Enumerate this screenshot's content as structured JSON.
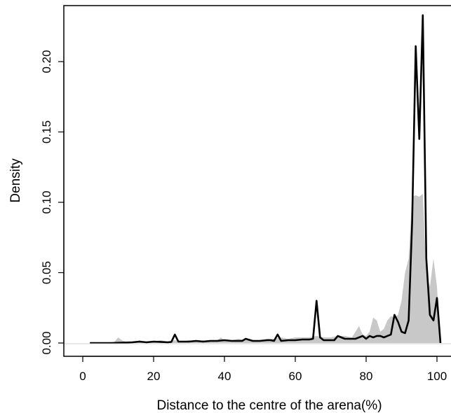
{
  "chart_data": {
    "type": "area",
    "title": "",
    "xlabel": "Distance to the centre of the arena(%)",
    "ylabel": "Density",
    "xlim": [
      0,
      100
    ],
    "ylim": [
      0,
      0.23
    ],
    "x_ticks": [
      0,
      20,
      40,
      60,
      80,
      100
    ],
    "x_tick_labels": [
      "0",
      "20",
      "40",
      "60",
      "80",
      "100"
    ],
    "y_ticks": [
      0.0,
      0.05,
      0.1,
      0.15,
      0.2
    ],
    "y_tick_labels": [
      "0.00",
      "0.05",
      "0.10",
      "0.15",
      "0.20"
    ],
    "grid": false,
    "legend": "none",
    "series": [
      {
        "style": "filled-area",
        "color": "#c8c8c8",
        "x": [
          0,
          8,
          9,
          10,
          11,
          12,
          15,
          16,
          17,
          20,
          22,
          24,
          26,
          28,
          30,
          32,
          34,
          36,
          38,
          39,
          40,
          42,
          44,
          46,
          48,
          50,
          52,
          54,
          56,
          58,
          60,
          62,
          64,
          66,
          68,
          70,
          72,
          74,
          76,
          77,
          78,
          79,
          80,
          81,
          82,
          83,
          84,
          85,
          86,
          87,
          88,
          89,
          90,
          91,
          92,
          93,
          94,
          95,
          96,
          97,
          98,
          99,
          100,
          101
        ],
        "y": [
          0,
          0,
          0.001,
          0.004,
          0.002,
          0.001,
          0.001,
          0.002,
          0.001,
          0.001,
          0.002,
          0.001,
          0.002,
          0.001,
          0.002,
          0.001,
          0.002,
          0.001,
          0.002,
          0.004,
          0.002,
          0.002,
          0.003,
          0.002,
          0.002,
          0.002,
          0.003,
          0.003,
          0.004,
          0.003,
          0.004,
          0.004,
          0.004,
          0.005,
          0.004,
          0.004,
          0.005,
          0.005,
          0.004,
          0.008,
          0.012,
          0.006,
          0.005,
          0.008,
          0.018,
          0.016,
          0.008,
          0.01,
          0.016,
          0.019,
          0.018,
          0.02,
          0.03,
          0.05,
          0.06,
          0.104,
          0.105,
          0.104,
          0.106,
          0.05,
          0.04,
          0.06,
          0.04,
          0
        ]
      },
      {
        "style": "black-line",
        "color": "#000000",
        "x": [
          2,
          8,
          14,
          16,
          18,
          20,
          22,
          24,
          25,
          26,
          27,
          28,
          30,
          32,
          34,
          36,
          38,
          40,
          42,
          44,
          45,
          46,
          48,
          50,
          52,
          53,
          54,
          55,
          56,
          58,
          60,
          62,
          64,
          65,
          66,
          67,
          68,
          69,
          70,
          71,
          72,
          73,
          74,
          75,
          76,
          77,
          78,
          79,
          80,
          81,
          82,
          83,
          84,
          85,
          86,
          87,
          88,
          89,
          90,
          91,
          92,
          93,
          94,
          95,
          96,
          97,
          98,
          99,
          100,
          101
        ],
        "y": [
          0,
          0,
          0.0005,
          0.001,
          0.0005,
          0.001,
          0.0008,
          0.0005,
          0.0008,
          0.006,
          0.001,
          0.001,
          0.001,
          0.0015,
          0.001,
          0.0015,
          0.0015,
          0.002,
          0.0015,
          0.0015,
          0.0015,
          0.003,
          0.0015,
          0.0015,
          0.002,
          0.002,
          0.0015,
          0.006,
          0.0015,
          0.002,
          0.002,
          0.0025,
          0.0025,
          0.003,
          0.03,
          0.004,
          0.002,
          0.002,
          0.002,
          0.002,
          0.005,
          0.004,
          0.003,
          0.003,
          0.003,
          0.003,
          0.004,
          0.005,
          0.003,
          0.005,
          0.004,
          0.005,
          0.005,
          0.004,
          0.005,
          0.006,
          0.02,
          0.015,
          0.008,
          0.007,
          0.016,
          0.086,
          0.211,
          0.145,
          0.233,
          0.06,
          0.02,
          0.016,
          0.032,
          0
        ]
      }
    ]
  }
}
